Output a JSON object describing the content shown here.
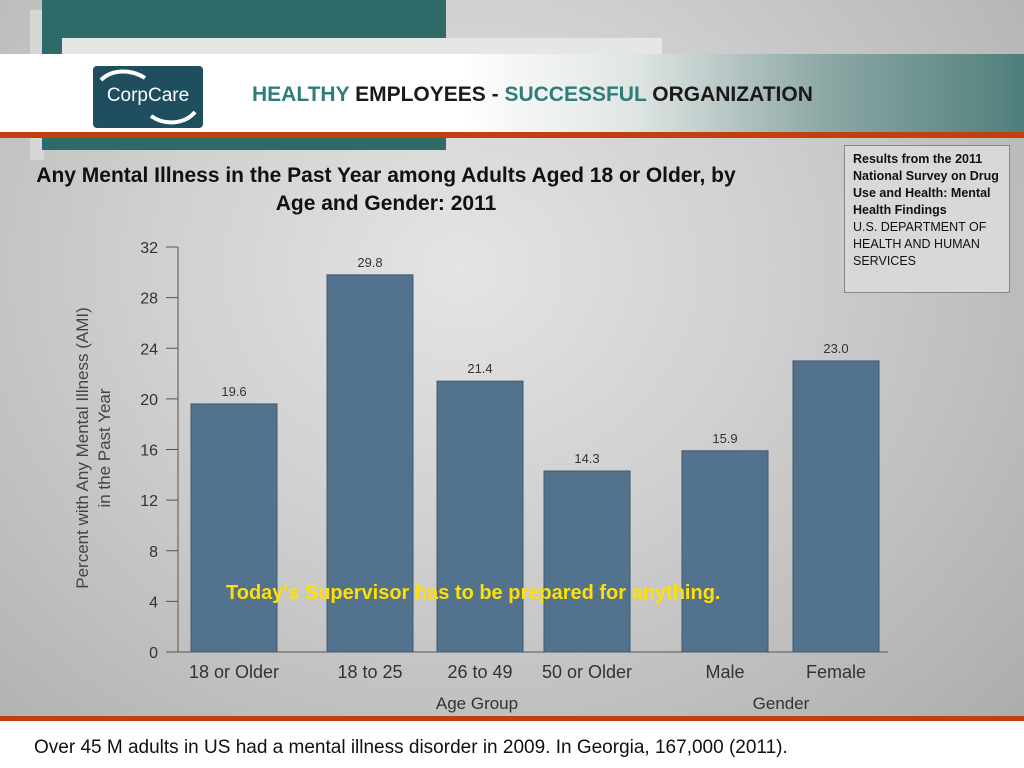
{
  "header": {
    "logo_text": "CorpCare",
    "title_parts": [
      "HEALTHY",
      "EMPLOYEES -",
      "SUCCESSFUL",
      "ORGANIZATION"
    ]
  },
  "source": {
    "line1": "Results from the 2011 National Survey on Drug Use and Health: Mental Health Findings",
    "line2": "U.S. DEPARTMENT OF HEALTH AND HUMAN SERVICES"
  },
  "callout": "Today's Supervisor has to be prepared for anything.",
  "footer": "Over 45 M adults in US had a mental illness disorder in 2009. In Georgia, 167,000 (2011).",
  "colors": {
    "bar": "#52728e",
    "accent_teal": "#2e7d7a",
    "rule": "#c0410f",
    "callout": "#ffe000"
  },
  "chart_data": {
    "type": "bar",
    "title": "Any Mental Illness in the Past Year among Adults Aged 18 or Older, by Age and Gender: 2011",
    "ylabel": "Percent with Any Mental Illness (AMI) in the Past Year",
    "ylim": [
      0,
      32
    ],
    "yticks": [
      0,
      4,
      8,
      12,
      16,
      20,
      24,
      28,
      32
    ],
    "categories": [
      "18 or Older",
      "18 to 25",
      "26 to 49",
      "50 or Older",
      "Male",
      "Female"
    ],
    "values": [
      19.6,
      29.8,
      21.4,
      14.3,
      15.9,
      23.0
    ],
    "value_labels": [
      "19.6",
      "29.8",
      "21.4",
      "14.3",
      "15.9",
      "23.0"
    ],
    "groups": [
      {
        "label": "Age Group",
        "categories": [
          "18 or Older",
          "18 to 25",
          "26 to 49",
          "50 or Older"
        ]
      },
      {
        "label": "Gender",
        "categories": [
          "Male",
          "Female"
        ]
      }
    ]
  }
}
